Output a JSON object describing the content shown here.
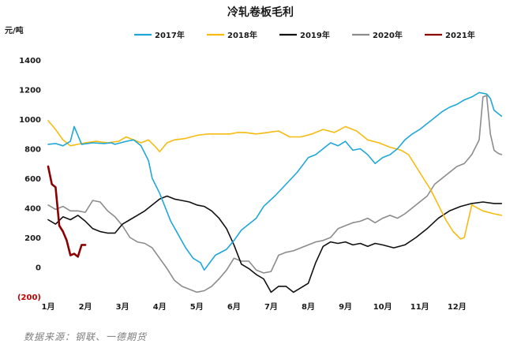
{
  "chart_data": {
    "type": "line",
    "title": "冷轧卷板毛利",
    "ylabel": "元/吨",
    "ylim": [
      -200,
      1400
    ],
    "yticks": [
      {
        "value": 1400,
        "label": "1400"
      },
      {
        "value": 1200,
        "label": "1200"
      },
      {
        "value": 1000,
        "label": "1000"
      },
      {
        "value": 800,
        "label": "800"
      },
      {
        "value": 600,
        "label": "600"
      },
      {
        "value": 400,
        "label": "400"
      },
      {
        "value": 200,
        "label": "200"
      },
      {
        "value": 0,
        "label": "0"
      },
      {
        "value": -200,
        "label": "(200)"
      }
    ],
    "xlim": [
      1,
      13.3
    ],
    "xticks": [
      "1月",
      "2月",
      "3月",
      "4月",
      "5月",
      "6月",
      "7月",
      "8月",
      "9月",
      "10月",
      "11月",
      "12月"
    ],
    "legend_position": "top",
    "grid": false,
    "negative_tick_color": "#c00000",
    "series": [
      {
        "name": "2017年",
        "color": "#1fa7d8",
        "width": 1.6,
        "x": [
          1.0,
          1.2,
          1.4,
          1.6,
          1.7,
          1.9,
          2.2,
          2.5,
          2.7,
          2.8,
          3.1,
          3.3,
          3.5,
          3.7,
          3.8,
          4.0,
          4.3,
          4.5,
          4.7,
          4.9,
          5.1,
          5.2,
          5.5,
          5.8,
          6.0,
          6.2,
          6.4,
          6.6,
          6.8,
          7.1,
          7.4,
          7.7,
          8.0,
          8.2,
          8.4,
          8.6,
          8.8,
          9.0,
          9.2,
          9.4,
          9.6,
          9.8,
          10.0,
          10.2,
          10.4,
          10.6,
          10.8,
          11.0,
          11.2,
          11.4,
          11.6,
          11.8,
          12.0,
          12.2,
          12.4,
          12.6,
          12.8,
          12.9,
          13.0,
          13.2
        ],
        "y": [
          830,
          835,
          820,
          850,
          950,
          830,
          840,
          835,
          840,
          830,
          850,
          860,
          820,
          720,
          600,
          500,
          310,
          220,
          130,
          60,
          30,
          -20,
          80,
          120,
          180,
          250,
          290,
          330,
          410,
          480,
          560,
          640,
          740,
          760,
          800,
          840,
          820,
          850,
          790,
          800,
          760,
          700,
          740,
          760,
          800,
          860,
          900,
          930,
          970,
          1010,
          1050,
          1080,
          1100,
          1130,
          1150,
          1180,
          1170,
          1140,
          1060,
          1020
        ]
      },
      {
        "name": "2018年",
        "color": "#f7bb10",
        "width": 1.6,
        "x": [
          1.0,
          1.2,
          1.4,
          1.6,
          1.8,
          2.0,
          2.3,
          2.6,
          2.9,
          3.1,
          3.3,
          3.5,
          3.7,
          3.9,
          4.0,
          4.2,
          4.4,
          4.7,
          5.0,
          5.3,
          5.6,
          5.9,
          6.1,
          6.3,
          6.6,
          6.9,
          7.2,
          7.5,
          7.8,
          8.1,
          8.4,
          8.7,
          9.0,
          9.3,
          9.6,
          9.9,
          10.2,
          10.5,
          10.7,
          10.9,
          11.1,
          11.3,
          11.5,
          11.7,
          11.9,
          12.1,
          12.2,
          12.4,
          12.7,
          13.0,
          13.2
        ],
        "y": [
          990,
          930,
          860,
          820,
          830,
          840,
          850,
          840,
          850,
          880,
          860,
          840,
          860,
          810,
          780,
          840,
          860,
          870,
          890,
          900,
          900,
          900,
          910,
          910,
          900,
          910,
          920,
          880,
          880,
          900,
          930,
          910,
          950,
          920,
          860,
          840,
          810,
          790,
          760,
          680,
          600,
          520,
          420,
          320,
          240,
          190,
          200,
          420,
          380,
          360,
          350
        ]
      },
      {
        "name": "2019年",
        "color": "#111111",
        "width": 1.6,
        "x": [
          1.0,
          1.2,
          1.4,
          1.6,
          1.8,
          2.0,
          2.2,
          2.4,
          2.6,
          2.8,
          3.0,
          3.2,
          3.4,
          3.6,
          3.8,
          4.0,
          4.2,
          4.4,
          4.6,
          4.8,
          5.0,
          5.2,
          5.4,
          5.6,
          5.8,
          6.0,
          6.2,
          6.4,
          6.6,
          6.8,
          7.0,
          7.2,
          7.4,
          7.6,
          7.8,
          8.0,
          8.2,
          8.4,
          8.6,
          8.8,
          9.0,
          9.2,
          9.4,
          9.6,
          9.8,
          10.0,
          10.3,
          10.6,
          10.9,
          11.2,
          11.5,
          11.8,
          12.1,
          12.4,
          12.7,
          13.0,
          13.2
        ],
        "y": [
          320,
          290,
          340,
          320,
          350,
          310,
          260,
          240,
          230,
          230,
          290,
          320,
          350,
          380,
          420,
          460,
          480,
          460,
          450,
          440,
          420,
          410,
          380,
          330,
          260,
          150,
          20,
          -10,
          -50,
          -80,
          -170,
          -130,
          -130,
          -170,
          -140,
          -110,
          30,
          140,
          170,
          160,
          170,
          150,
          160,
          140,
          160,
          150,
          130,
          150,
          200,
          260,
          330,
          380,
          410,
          430,
          440,
          430,
          430
        ]
      },
      {
        "name": "2020年",
        "color": "#8c8c8c",
        "width": 1.6,
        "x": [
          1.0,
          1.2,
          1.4,
          1.6,
          1.8,
          2.0,
          2.2,
          2.4,
          2.6,
          2.8,
          3.0,
          3.2,
          3.4,
          3.6,
          3.8,
          4.0,
          4.2,
          4.4,
          4.6,
          4.8,
          5.0,
          5.2,
          5.4,
          5.6,
          5.8,
          6.0,
          6.2,
          6.4,
          6.6,
          6.8,
          7.0,
          7.2,
          7.4,
          7.6,
          7.8,
          8.0,
          8.2,
          8.4,
          8.6,
          8.8,
          9.0,
          9.2,
          9.4,
          9.6,
          9.8,
          10.0,
          10.2,
          10.4,
          10.6,
          10.8,
          11.0,
          11.2,
          11.4,
          11.6,
          11.8,
          12.0,
          12.2,
          12.4,
          12.6,
          12.7,
          12.8,
          12.9,
          13.0,
          13.1,
          13.2
        ],
        "y": [
          420,
          390,
          410,
          380,
          380,
          370,
          450,
          440,
          380,
          340,
          280,
          200,
          170,
          160,
          130,
          60,
          -10,
          -90,
          -130,
          -150,
          -170,
          -160,
          -130,
          -80,
          -20,
          60,
          40,
          40,
          -20,
          -40,
          -30,
          80,
          100,
          110,
          130,
          150,
          170,
          180,
          200,
          260,
          280,
          300,
          310,
          330,
          300,
          330,
          350,
          330,
          360,
          400,
          440,
          480,
          560,
          600,
          640,
          680,
          700,
          760,
          860,
          1150,
          1160,
          900,
          790,
          770,
          760
        ]
      },
      {
        "name": "2021年",
        "color": "#8b0000",
        "width": 2.6,
        "x": [
          1.0,
          1.1,
          1.2,
          1.3,
          1.4,
          1.5,
          1.6,
          1.7,
          1.8,
          1.9,
          2.0
        ],
        "y": [
          680,
          560,
          540,
          280,
          240,
          180,
          80,
          90,
          70,
          150,
          150
        ]
      }
    ],
    "source": "数据来源：钢联、一德期货"
  }
}
